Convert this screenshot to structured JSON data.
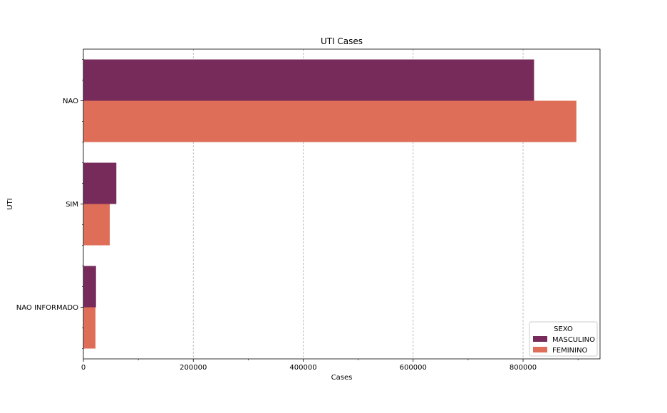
{
  "chart_data": {
    "type": "bar",
    "orientation": "horizontal",
    "title": "UTI Cases",
    "xlabel": "Cases",
    "ylabel": "UTI",
    "categories": [
      "NAO",
      "SIM",
      "NAO INFORMADO"
    ],
    "series": [
      {
        "name": "MASCULINO",
        "color": "#772b5b",
        "values": [
          820000,
          60000,
          23000
        ]
      },
      {
        "name": "FEMININO",
        "color": "#de6e58",
        "values": [
          897000,
          48000,
          22000
        ]
      }
    ],
    "xlim": [
      0,
      940000
    ],
    "xticks": [
      0,
      200000,
      400000,
      600000,
      800000
    ],
    "xtick_labels": [
      "0",
      "200000",
      "400000",
      "600000",
      "800000"
    ],
    "grid": "x-dashed",
    "legend": {
      "title": "SEXO",
      "placement": "lower-right"
    }
  }
}
